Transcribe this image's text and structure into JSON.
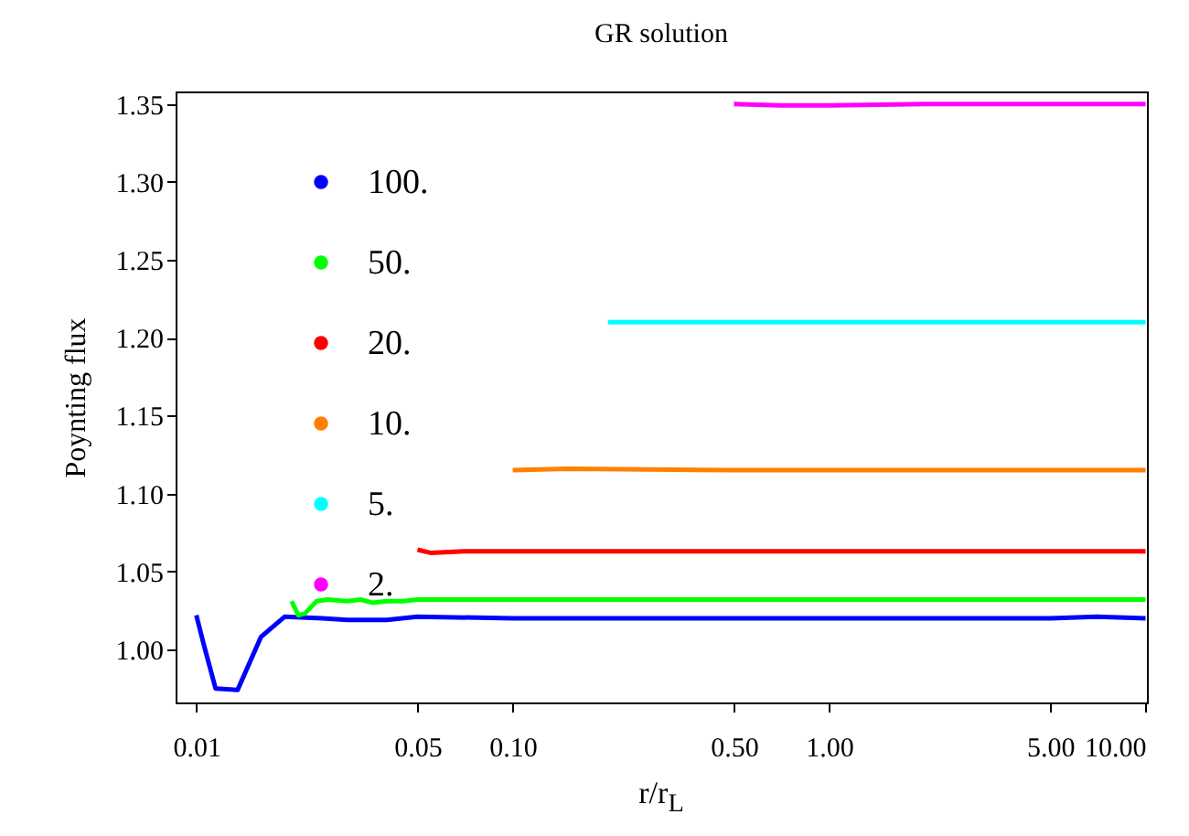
{
  "chart_data": {
    "type": "line",
    "title": "GR solution",
    "xlabel": "r/r$_{L}$",
    "ylabel": "Poynting flux",
    "log": "x",
    "xlim": [
      0.0086,
      10.1
    ],
    "ylim": [
      0.966,
      1.358
    ],
    "xticks": [
      {
        "value": 0.01,
        "label": "0.01"
      },
      {
        "value": 0.05,
        "label": "0.05"
      },
      {
        "value": 0.1,
        "label": "0.10"
      },
      {
        "value": 0.5,
        "label": "0.50"
      },
      {
        "value": 1,
        "label": "1.00"
      },
      {
        "value": 5,
        "label": "5.00"
      },
      {
        "value": 10,
        "label": "10.00"
      }
    ],
    "yticks": [
      {
        "value": 1,
        "label": "1.00"
      },
      {
        "value": 1.05,
        "label": "1.05"
      },
      {
        "value": 1.1,
        "label": "1.10"
      },
      {
        "value": 1.15,
        "label": "1.15"
      },
      {
        "value": 1.2,
        "label": "1.20"
      },
      {
        "value": 1.25,
        "label": "1.25"
      },
      {
        "value": 1.3,
        "label": "1.30"
      },
      {
        "value": 1.35,
        "label": "1.35"
      }
    ],
    "grid": false,
    "legend": "top left",
    "marker": "none",
    "line_style": "solid",
    "series": [
      {
        "name": "100.",
        "color": "#0000ff",
        "x": [
          0.01,
          0.0105,
          0.0115,
          0.0135,
          0.016,
          0.019,
          0.025,
          0.03,
          0.04,
          0.05,
          0.1,
          0.5,
          1,
          2,
          5,
          7,
          10
        ],
        "values": [
          1.022,
          1.005,
          0.975,
          0.974,
          1.008,
          1.021,
          1.02,
          1.019,
          1.019,
          1.021,
          1.02,
          1.02,
          1.02,
          1.02,
          1.02,
          1.021,
          1.02
        ]
      },
      {
        "name": "50.",
        "color": "#00ff00",
        "x": [
          0.02,
          0.021,
          0.022,
          0.024,
          0.026,
          0.03,
          0.033,
          0.036,
          0.04,
          0.045,
          0.05,
          0.1,
          1,
          10
        ],
        "values": [
          1.031,
          1.022,
          1.023,
          1.031,
          1.032,
          1.031,
          1.032,
          1.03,
          1.031,
          1.031,
          1.032,
          1.032,
          1.032,
          1.032
        ]
      },
      {
        "name": "20.",
        "color": "#ff0000",
        "x": [
          0.05,
          0.055,
          0.07,
          0.1,
          1,
          10
        ],
        "values": [
          1.064,
          1.062,
          1.063,
          1.063,
          1.063,
          1.063
        ]
      },
      {
        "name": "10.",
        "color": "#ff8000",
        "x": [
          0.1,
          0.15,
          0.5,
          1,
          10
        ],
        "values": [
          1.115,
          1.116,
          1.115,
          1.115,
          1.115
        ]
      },
      {
        "name": "5.",
        "color": "#00ffff",
        "x": [
          0.2,
          0.5,
          1,
          10
        ],
        "values": [
          1.21,
          1.21,
          1.21,
          1.21
        ]
      },
      {
        "name": "2.",
        "color": "#ff00ff",
        "x": [
          0.5,
          0.7,
          1,
          2,
          10
        ],
        "values": [
          1.35,
          1.349,
          1.349,
          1.35,
          1.35
        ]
      }
    ]
  }
}
